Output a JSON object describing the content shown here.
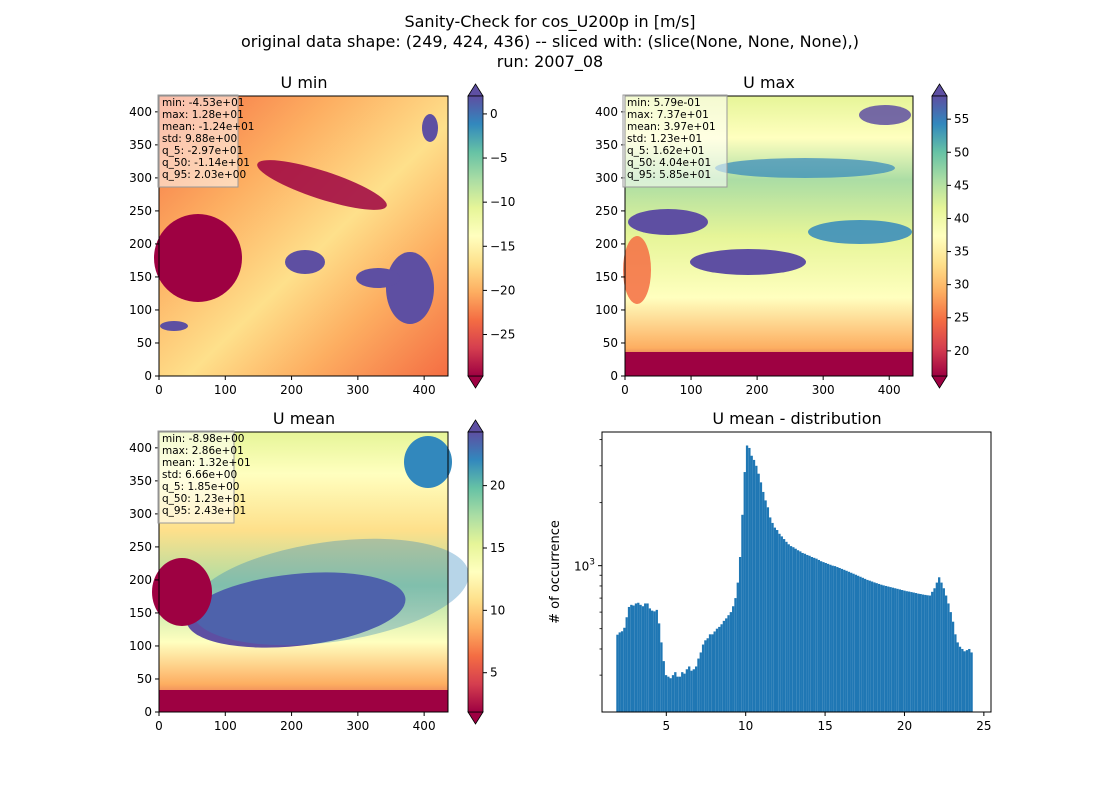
{
  "suptitle": {
    "line1": "Sanity-Check for cos_U200p in [m/s]",
    "line2": "original data shape: (249, 424, 436) -- sliced with: (slice(None, None, None),)",
    "line3": "run: 2007_08"
  },
  "colormap_colors": [
    "#9e0142",
    "#d53e4f",
    "#f46d43",
    "#fdae61",
    "#fee08b",
    "#ffffbf",
    "#e6f598",
    "#abdda4",
    "#66c2a5",
    "#3288bd",
    "#5e4fa2"
  ],
  "hist_color": "#1f77b4",
  "chart_data": [
    {
      "type": "heatmap",
      "title": "U min",
      "xlabel": "",
      "ylabel": "",
      "xlim": [
        0,
        436
      ],
      "ylim": [
        0,
        424
      ],
      "x_ticks": [
        0,
        100,
        200,
        300,
        400
      ],
      "y_ticks": [
        0,
        50,
        100,
        150,
        200,
        250,
        300,
        350,
        400
      ],
      "colorbar": {
        "range": [
          -29.7,
          2.03
        ],
        "ticks": [
          "0",
          "−5",
          "−10",
          "−15",
          "−20",
          "−25"
        ],
        "tick_values": [
          0,
          -5,
          -10,
          -15,
          -20,
          -25
        ],
        "extend": "both"
      },
      "stats_lines": [
        "min: -4.53e+01",
        "max: 1.28e+01",
        "mean: -1.24e+01",
        "std: 9.88e+00",
        "q_5: -2.97e+01",
        "q_50: -1.14e+01",
        "q_95: 2.03e+00"
      ],
      "stats": {
        "min": -45.3,
        "max": 12.8,
        "mean": -12.4,
        "std": 9.88,
        "q_5": -29.7,
        "q_50": -11.4,
        "q_95": 2.03
      }
    },
    {
      "type": "heatmap",
      "title": "U max",
      "xlabel": "",
      "ylabel": "",
      "xlim": [
        0,
        436
      ],
      "ylim": [
        0,
        424
      ],
      "x_ticks": [
        0,
        100,
        200,
        300,
        400
      ],
      "y_ticks": [
        0,
        50,
        100,
        150,
        200,
        250,
        300,
        350,
        400
      ],
      "colorbar": {
        "range": [
          16.2,
          58.5
        ],
        "ticks": [
          "55",
          "50",
          "45",
          "40",
          "35",
          "30",
          "25",
          "20"
        ],
        "tick_values": [
          55,
          50,
          45,
          40,
          35,
          30,
          25,
          20
        ],
        "extend": "both"
      },
      "stats_lines": [
        "min: 5.79e-01",
        "max: 7.37e+01",
        "mean: 3.97e+01",
        "std: 1.23e+01",
        "q_5: 1.62e+01",
        "q_50: 4.04e+01",
        "q_95: 5.85e+01"
      ],
      "stats": {
        "min": 0.579,
        "max": 73.7,
        "mean": 39.7,
        "std": 12.3,
        "q_5": 16.2,
        "q_50": 40.4,
        "q_95": 58.5
      }
    },
    {
      "type": "heatmap",
      "title": "U mean",
      "xlabel": "",
      "ylabel": "",
      "xlim": [
        0,
        436
      ],
      "ylim": [
        0,
        424
      ],
      "x_ticks": [
        0,
        100,
        200,
        300,
        400
      ],
      "y_ticks": [
        0,
        50,
        100,
        150,
        200,
        250,
        300,
        350,
        400
      ],
      "colorbar": {
        "range": [
          1.85,
          24.3
        ],
        "ticks": [
          "20",
          "15",
          "10",
          "5"
        ],
        "tick_values": [
          20,
          15,
          10,
          5
        ],
        "extend": "both"
      },
      "stats_lines": [
        "min: -8.98e+00",
        "max: 2.86e+01",
        "mean: 1.32e+01",
        "std: 6.66e+00",
        "q_5: 1.85e+00",
        "q_50: 1.23e+01",
        "q_95: 2.43e+01"
      ],
      "stats": {
        "min": -8.98,
        "max": 28.6,
        "mean": 13.2,
        "std": 6.66,
        "q_5": 1.85,
        "q_50": 12.3,
        "q_95": 24.3
      }
    },
    {
      "type": "bar",
      "title": "U mean - distribution",
      "xlabel": "",
      "ylabel": "# of occurrence",
      "y_scale": "log",
      "xlim": [
        0.95,
        25.45
      ],
      "ylim": [
        200,
        4350
      ],
      "x_ticks": [
        5,
        10,
        15,
        20,
        25
      ],
      "y_tick_major": 1000,
      "y_tick_major_label": "10",
      "y_tick_major_exponent": "3",
      "y_tick_minor": [
        300,
        400,
        500,
        600,
        700,
        800,
        900,
        2000,
        3000,
        4000
      ],
      "bin_range": [
        1.85,
        24.3
      ],
      "counts": [
        468,
        480,
        486,
        505,
        567,
        635,
        650,
        645,
        660,
        665,
        650,
        640,
        660,
        660,
        625,
        610,
        605,
        615,
        530,
        430,
        350,
        300,
        295,
        290,
        300,
        310,
        295,
        295,
        310,
        305,
        320,
        330,
        315,
        320,
        330,
        360,
        385,
        420,
        440,
        450,
        470,
        470,
        485,
        500,
        510,
        525,
        545,
        560,
        580,
        600,
        640,
        700,
        830,
        1100,
        1750,
        2800,
        3750,
        3650,
        3350,
        3200,
        3000,
        2750,
        2500,
        2250,
        2050,
        1900,
        1700,
        1600,
        1520,
        1480,
        1420,
        1380,
        1340,
        1300,
        1265,
        1240,
        1225,
        1205,
        1185,
        1170,
        1150,
        1140,
        1125,
        1115,
        1100,
        1090,
        1080,
        1065,
        1050,
        1040,
        1030,
        1020,
        1010,
        1000,
        995,
        985,
        975,
        965,
        955,
        945,
        935,
        925,
        915,
        905,
        895,
        885,
        875,
        865,
        855,
        848,
        840,
        832,
        825,
        818,
        811,
        805,
        800,
        795,
        790,
        785,
        780,
        775,
        770,
        765,
        760,
        755,
        752,
        748,
        744,
        740,
        735,
        732,
        728,
        725,
        722,
        720,
        750,
        780,
        830,
        880,
        830,
        780,
        720,
        660,
        600,
        540,
        470,
        430,
        410,
        400,
        390,
        395,
        400,
        385
      ]
    }
  ]
}
